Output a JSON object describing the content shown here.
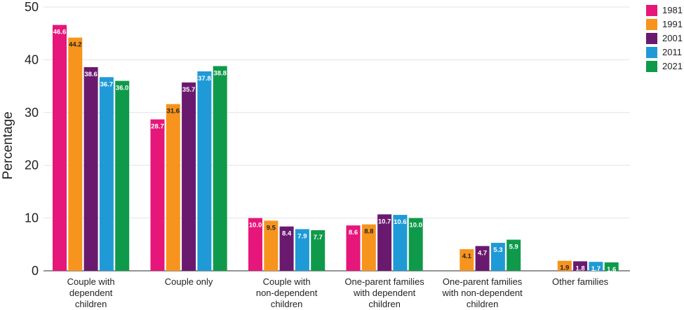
{
  "chart_data": {
    "type": "bar",
    "ylabel": "Percentage",
    "xlabel": "",
    "ylim": [
      0,
      50
    ],
    "yticks": [
      "0",
      "10",
      "20",
      "30",
      "40",
      "50"
    ],
    "grid": "horizontal",
    "legend_position": "top-right",
    "categories": [
      [
        "Couple with",
        "dependent",
        "children"
      ],
      [
        "Couple only"
      ],
      [
        "Couple with",
        "non-dependent",
        "children"
      ],
      [
        "One-parent families",
        "with dependent",
        "children"
      ],
      [
        "One-parent families",
        "with non-dependent",
        "children"
      ],
      [
        "Other families"
      ]
    ],
    "series": [
      {
        "name": "1981",
        "color": "#e6167a",
        "values": [
          46.6,
          28.7,
          10.0,
          8.6,
          null,
          null
        ],
        "labels": [
          "46.6",
          "28.7",
          "10.0",
          "8.6",
          "",
          ""
        ]
      },
      {
        "name": "1991",
        "color": "#f7941d",
        "values": [
          44.2,
          31.6,
          9.5,
          8.8,
          4.1,
          1.9
        ],
        "labels": [
          "44.2",
          "31.6",
          "9.5",
          "8.8",
          "4.1",
          "1.9"
        ]
      },
      {
        "name": "2001",
        "color": "#6a1a6e",
        "values": [
          38.6,
          35.7,
          8.4,
          10.7,
          4.7,
          1.8
        ],
        "labels": [
          "38.6",
          "35.7",
          "8.4",
          "10.7",
          "4.7",
          "1.8"
        ]
      },
      {
        "name": "2011",
        "color": "#1f9ad6",
        "values": [
          36.7,
          37.8,
          7.9,
          10.6,
          5.3,
          1.7
        ],
        "labels": [
          "36.7",
          "37.8",
          "7.9",
          "10.6",
          "5.3",
          "1.7"
        ]
      },
      {
        "name": "2021",
        "color": "#0e9a4a",
        "values": [
          36.0,
          38.8,
          7.7,
          10.0,
          5.9,
          1.6
        ],
        "labels": [
          "36.0",
          "38.8",
          "7.7",
          "10.0",
          "5.9",
          "1.6"
        ]
      }
    ]
  }
}
